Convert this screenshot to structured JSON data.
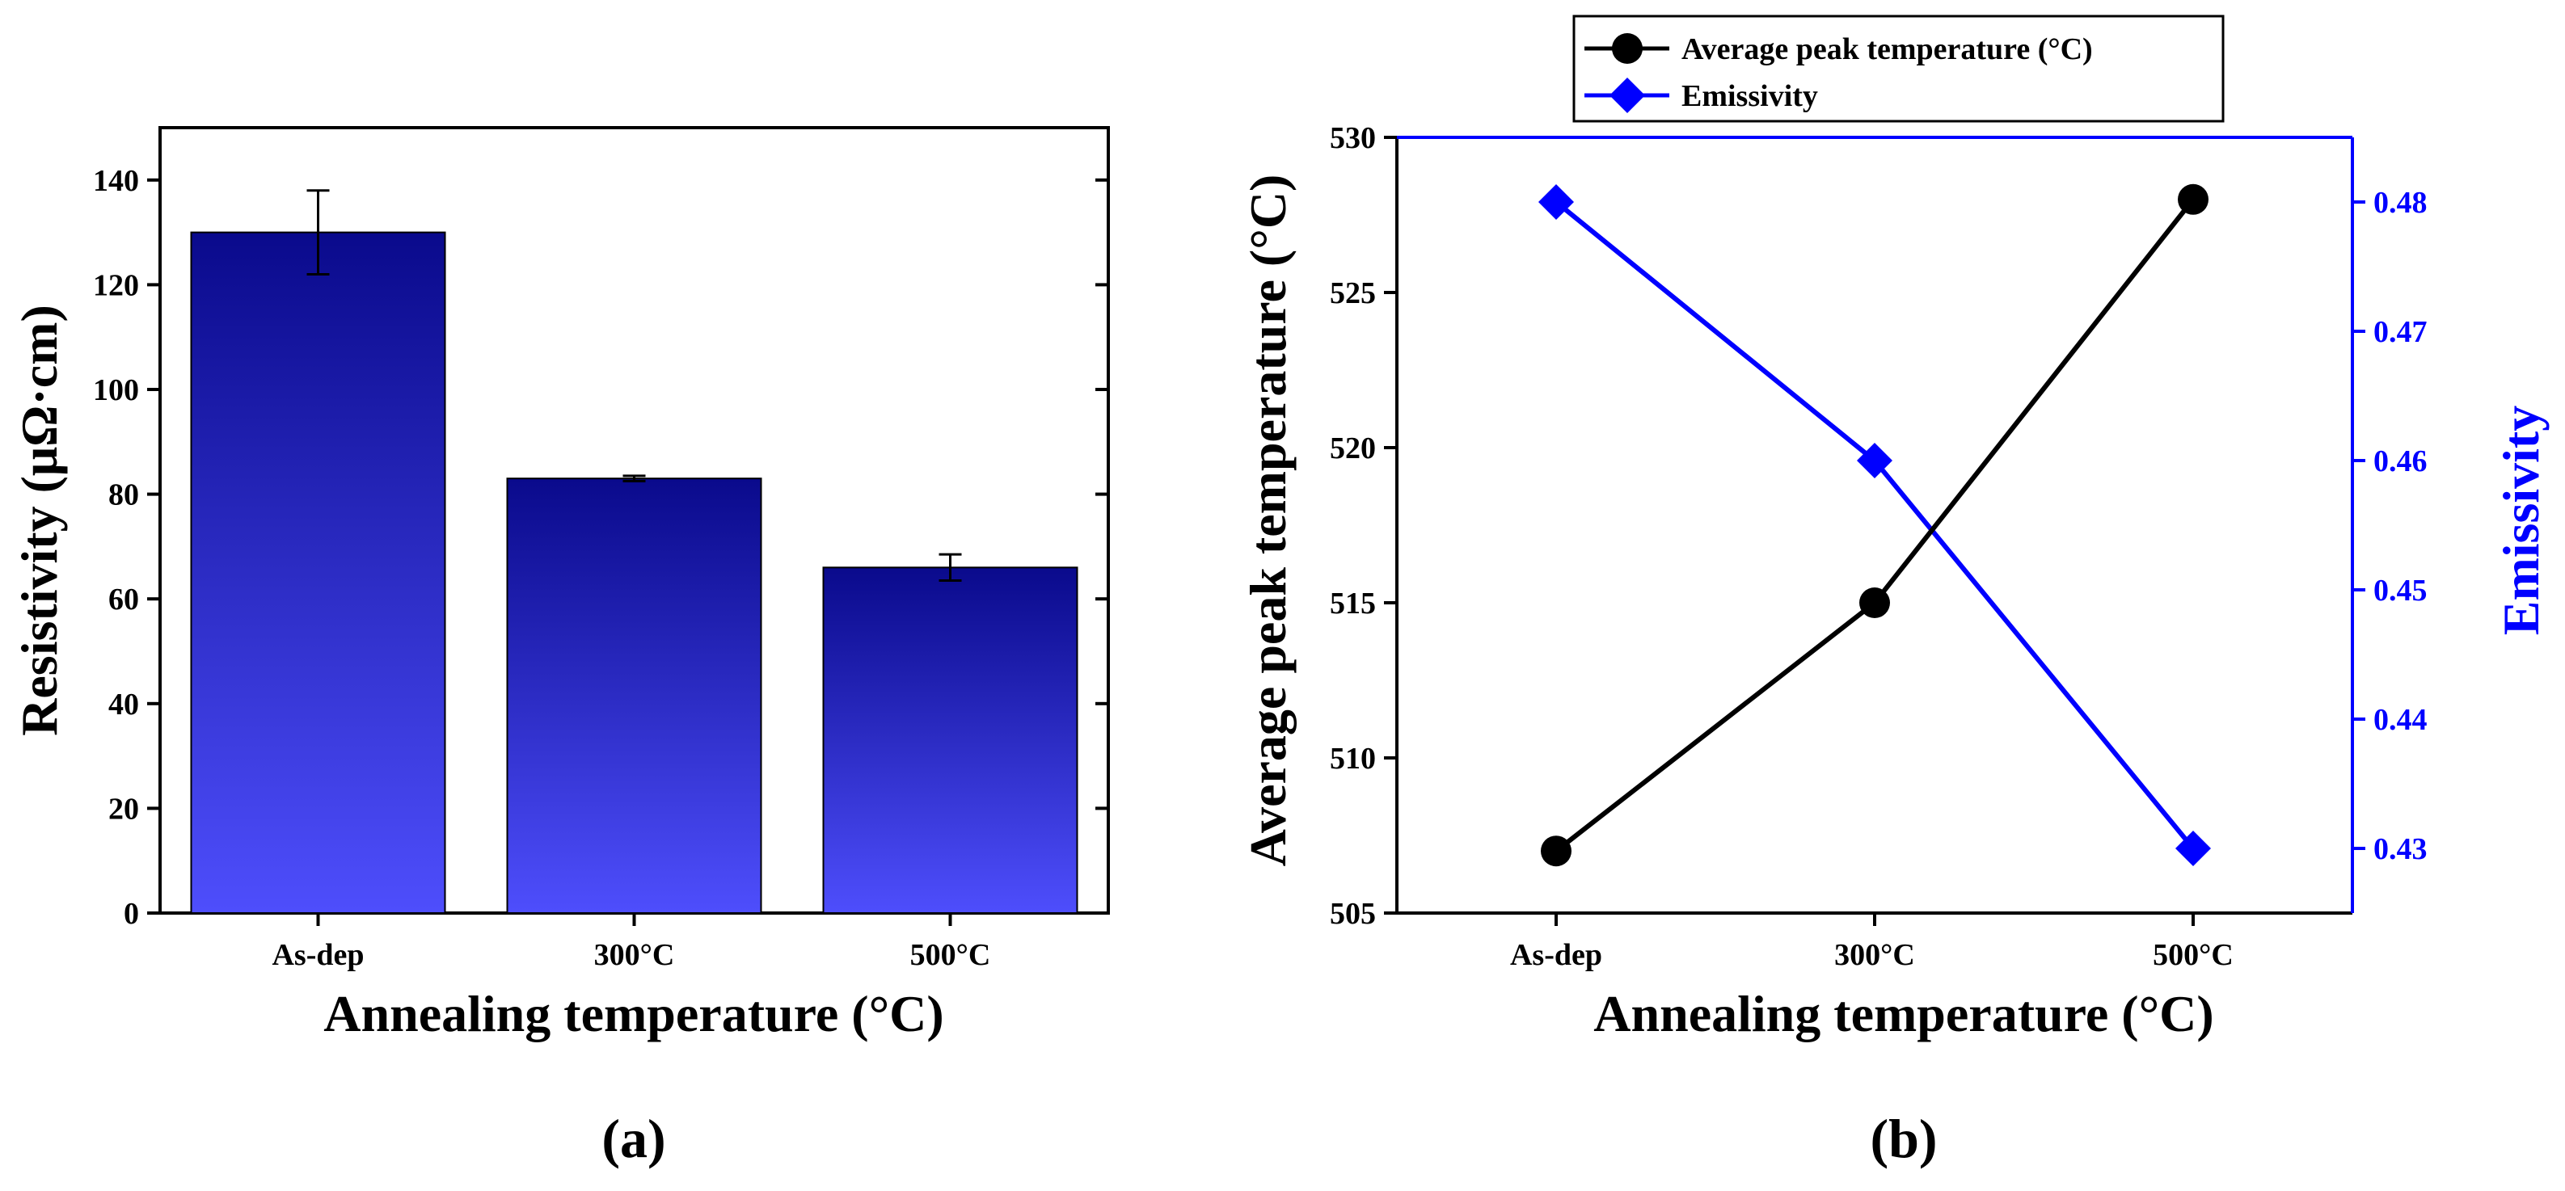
{
  "chart_data": [
    {
      "panel_label": "(a)",
      "type": "bar",
      "xlabel": "Annealing temperature (°C)",
      "ylabel": "Resistivity (μΩ·cm)",
      "categories": [
        "As-dep",
        "300°C",
        "500°C"
      ],
      "values": [
        130,
        83,
        66
      ],
      "errors": [
        8,
        0.5,
        2.5
      ],
      "ylim": [
        0,
        150
      ],
      "yticks": [
        0,
        20,
        40,
        60,
        80,
        100,
        120,
        140
      ],
      "grid": false,
      "bar_color_top": "#0a0a8c",
      "bar_color_bottom": "#4e4efc"
    },
    {
      "panel_label": "(b)",
      "type": "line",
      "xlabel": "Annealing temperature (°C)",
      "categories": [
        "As-dep",
        "300°C",
        "500°C"
      ],
      "series": [
        {
          "name": "Average peak temperature (°C)",
          "axis": "left",
          "ylabel": "Average peak temperature (°C)",
          "values": [
            507,
            515,
            528
          ],
          "ylim": [
            505,
            530
          ],
          "yticks": [
            505,
            510,
            515,
            520,
            525,
            530
          ],
          "color": "#000000",
          "marker": "circle"
        },
        {
          "name": "Emissivity",
          "axis": "right",
          "ylabel": "Emissivity",
          "values": [
            0.48,
            0.46,
            0.43
          ],
          "ylim": [
            0.425,
            0.485
          ],
          "yticks": [
            0.43,
            0.44,
            0.45,
            0.46,
            0.47,
            0.48
          ],
          "color": "#0000ff",
          "marker": "diamond"
        }
      ],
      "legend_position": "top-center",
      "grid": false
    }
  ]
}
